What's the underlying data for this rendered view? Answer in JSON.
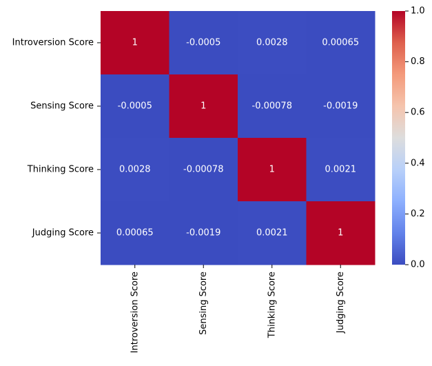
{
  "chart_data": {
    "type": "heatmap",
    "title": "",
    "xlabel": "",
    "ylabel": "",
    "x_categories": [
      "Introversion Score",
      "Sensing Score",
      "Thinking Score",
      "Judging Score"
    ],
    "y_categories": [
      "Introversion Score",
      "Sensing Score",
      "Thinking Score",
      "Judging Score"
    ],
    "values": [
      [
        1,
        -0.0005,
        0.0028,
        0.00065
      ],
      [
        -0.0005,
        1,
        -0.00078,
        -0.0019
      ],
      [
        0.0028,
        -0.00078,
        1,
        0.0021
      ],
      [
        0.00065,
        -0.0019,
        0.0021,
        1
      ]
    ],
    "cell_labels": [
      [
        "1",
        "-0.0005",
        "0.0028",
        "0.00065"
      ],
      [
        "-0.0005",
        "1",
        "-0.00078",
        "-0.0019"
      ],
      [
        "0.0028",
        "-0.00078",
        "1",
        "0.0021"
      ],
      [
        "0.00065",
        "-0.0019",
        "0.0021",
        "1"
      ]
    ],
    "colormap": "coolwarm",
    "color_range": [
      0.0,
      1.0
    ],
    "colorbar_ticks": [
      "0.0",
      "0.2",
      "0.4",
      "0.6",
      "0.8",
      "1.0"
    ],
    "colorbar_tick_values": [
      0.0,
      0.2,
      0.4,
      0.6,
      0.8,
      1.0
    ],
    "annotation_color": "#ffffff",
    "legend": "colorbar-right"
  }
}
